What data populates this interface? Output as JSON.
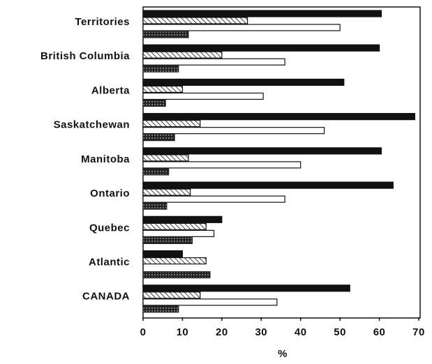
{
  "chart_data": {
    "type": "hbar",
    "categories": [
      "Territories",
      "British Columbia",
      "Alberta",
      "Saskatchewan",
      "Manitoba",
      "Ontario",
      "Quebec",
      "Atlantic",
      "CANADA"
    ],
    "series": [
      {
        "color": "#111111",
        "style": "solid",
        "values": [
          60.5,
          60,
          51,
          69,
          60.5,
          63.5,
          20,
          10,
          52.5
        ]
      },
      {
        "color": "#111111",
        "style": "hatch",
        "values": [
          26.5,
          20,
          10,
          14.5,
          11.5,
          12,
          16,
          16,
          14.5
        ]
      },
      {
        "color": "#111111",
        "style": "outline",
        "values": [
          50,
          36,
          30.5,
          46,
          40,
          36,
          18,
          null,
          34
        ]
      },
      {
        "color": "#222222",
        "style": "dots",
        "values": [
          11.5,
          9,
          5.7,
          8,
          6.5,
          6,
          12.5,
          17,
          9
        ]
      }
    ],
    "xlim": [
      0,
      70
    ],
    "xticks": [
      0,
      10,
      20,
      30,
      40,
      50,
      60,
      70
    ],
    "xlabel": "%"
  }
}
